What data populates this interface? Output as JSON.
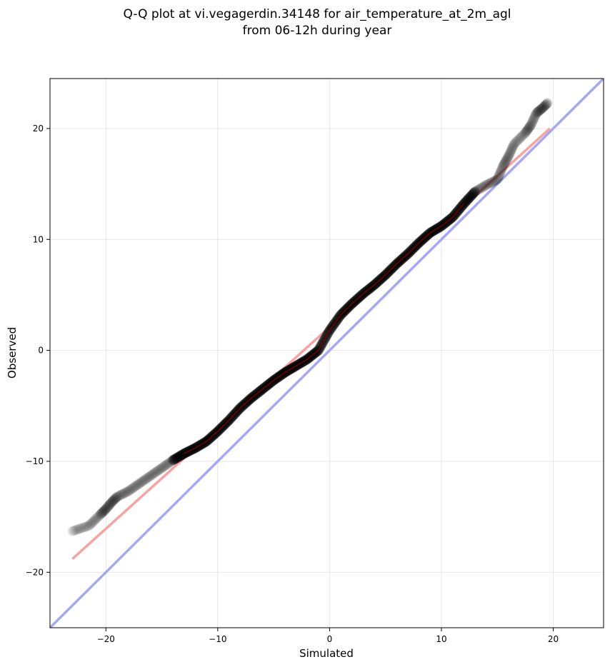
{
  "chart_data": {
    "type": "scatter",
    "title_lines": [
      "Q-Q plot at vi.vegagerdin.34148 for air_temperature_at_2m_agl",
      "from 06-12h during year"
    ],
    "xlabel": "Simulated",
    "ylabel": "Observed",
    "xlim": [
      -25.0,
      24.5
    ],
    "ylim": [
      -25.0,
      24.5
    ],
    "xticks": [
      -20,
      -10,
      0,
      10,
      20
    ],
    "yticks": [
      -20,
      -10,
      0,
      10,
      20
    ],
    "xtick_labels": [
      "−20",
      "−10",
      "0",
      "10",
      "20"
    ],
    "ytick_labels": [
      "−20",
      "−10",
      "0",
      "10",
      "20"
    ],
    "grid": true,
    "colors": {
      "points": "#000000",
      "fit_line": "#f5a3a3",
      "identity_line": "#a7a7f2",
      "inner_line": "#8b0000",
      "grid": "#e6e6e6"
    },
    "quantile_curve": [
      [
        -23.0,
        -16.3
      ],
      [
        -21.5,
        -15.8
      ],
      [
        -20.5,
        -14.8
      ],
      [
        -20.0,
        -14.3
      ],
      [
        -19.5,
        -13.7
      ],
      [
        -19.0,
        -13.2
      ],
      [
        -18.0,
        -12.7
      ],
      [
        -17.0,
        -12.0
      ],
      [
        -16.0,
        -11.3
      ],
      [
        -15.0,
        -10.6
      ],
      [
        -14.0,
        -9.9
      ],
      [
        -13.0,
        -9.3
      ],
      [
        -12.0,
        -8.8
      ],
      [
        -11.0,
        -8.2
      ],
      [
        -10.0,
        -7.3
      ],
      [
        -9.0,
        -6.3
      ],
      [
        -8.0,
        -5.2
      ],
      [
        -7.0,
        -4.3
      ],
      [
        -6.0,
        -3.5
      ],
      [
        -5.0,
        -2.7
      ],
      [
        -4.0,
        -2.0
      ],
      [
        -3.0,
        -1.4
      ],
      [
        -2.0,
        -0.8
      ],
      [
        -1.0,
        0.0
      ],
      [
        0.0,
        1.8
      ],
      [
        1.0,
        3.2
      ],
      [
        2.0,
        4.2
      ],
      [
        3.0,
        5.1
      ],
      [
        4.0,
        5.9
      ],
      [
        5.0,
        6.8
      ],
      [
        6.0,
        7.8
      ],
      [
        7.0,
        8.7
      ],
      [
        8.0,
        9.7
      ],
      [
        9.0,
        10.6
      ],
      [
        10.0,
        11.2
      ],
      [
        11.0,
        12.0
      ],
      [
        12.0,
        13.2
      ],
      [
        13.0,
        14.3
      ],
      [
        14.0,
        14.9
      ],
      [
        15.0,
        15.4
      ],
      [
        15.5,
        16.6
      ],
      [
        16.0,
        17.5
      ],
      [
        16.5,
        18.6
      ],
      [
        17.5,
        19.6
      ],
      [
        18.0,
        20.3
      ],
      [
        18.5,
        21.4
      ],
      [
        19.0,
        21.8
      ],
      [
        19.5,
        22.3
      ]
    ],
    "fit_line": {
      "x": [
        -23.0,
        19.7
      ],
      "y": [
        -18.8,
        20.0
      ]
    },
    "identity_line": {
      "x": [
        -25.0,
        24.5
      ],
      "y": [
        -25.0,
        24.5
      ]
    }
  }
}
